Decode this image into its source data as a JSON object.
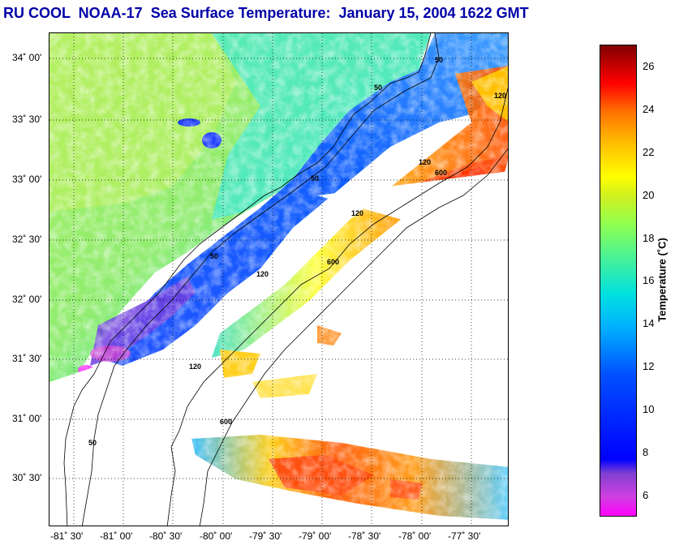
{
  "title": "RU COOL  NOAA-17  Sea Surface Temperature:  January 15, 2004 1622 GMT",
  "lat_labels": [
    "34˚ 00'",
    "33˚ 30'",
    "33˚ 00'",
    "32˚ 30'",
    "32˚ 00'",
    "31˚ 30'",
    "31˚ 00'",
    "30˚ 30'"
  ],
  "lon_labels": [
    "-81˚ 30'",
    "-81˚ 00'",
    "-80˚ 30'",
    "-80˚ 00'",
    "-79˚ 30'",
    "-79˚ 00'",
    "-78˚ 30'",
    "-78˚ 00'",
    "-77˚ 30'"
  ],
  "contour_labels": [
    "50",
    "50",
    "50",
    "50",
    "50",
    "120",
    "120",
    "120",
    "120",
    "120",
    "600",
    "600",
    "600"
  ],
  "colorbar": {
    "label": "Temperature (˚C)",
    "ticks": [
      "26",
      "24",
      "22",
      "20",
      "18",
      "16",
      "14",
      "12",
      "10",
      "8",
      "6"
    ],
    "min": 5,
    "max": 27
  },
  "colors": {
    "title": "#0000a8",
    "land": "#ffffff",
    "cold": "#0000ff",
    "warm": "#ff3000"
  }
}
